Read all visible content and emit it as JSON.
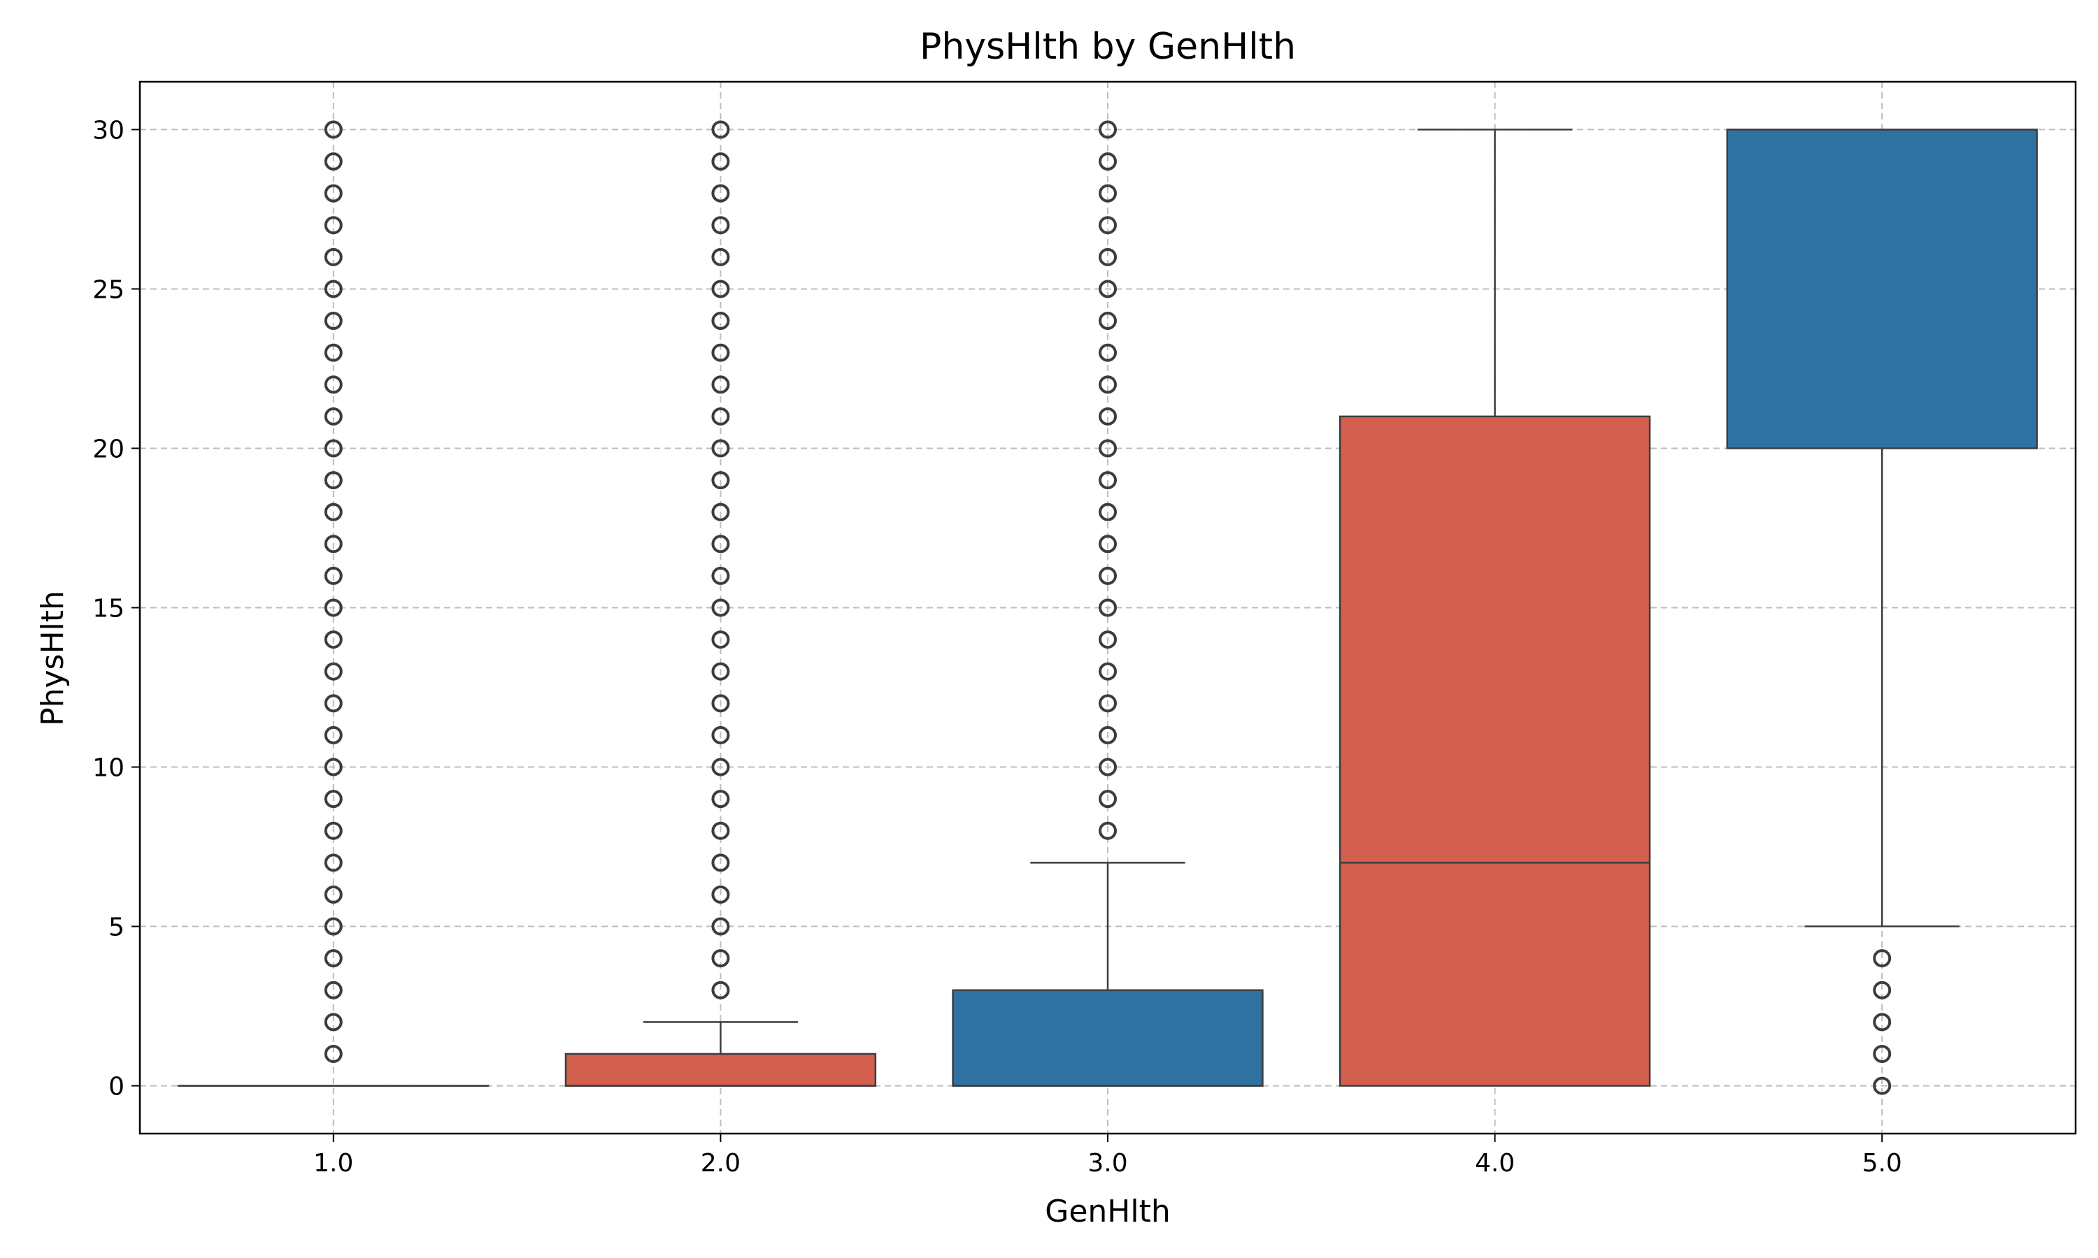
{
  "chart_data": {
    "type": "box",
    "title": "PhysHlth by GenHlth",
    "xlabel": "GenHlth",
    "ylabel": "PhysHlth",
    "categories": [
      "1.0",
      "2.0",
      "3.0",
      "4.0",
      "5.0"
    ],
    "ylim": [
      -1.5,
      31.5
    ],
    "yticks": [
      0,
      5,
      10,
      15,
      20,
      25,
      30
    ],
    "ytick_labels": [
      "0",
      "5",
      "10",
      "15",
      "20",
      "25",
      "30"
    ],
    "grid": true,
    "legend": "none",
    "colors": [
      "#d35f4f",
      "#d35f4f",
      "#2f72a1",
      "#d35f4f",
      "#2f72a1"
    ],
    "boxes": [
      {
        "category": "1.0",
        "whislo": 0,
        "q1": 0,
        "median": 0,
        "q3": 0,
        "whishi": 0,
        "fliers": [
          1,
          2,
          3,
          4,
          5,
          6,
          7,
          8,
          9,
          10,
          11,
          12,
          13,
          14,
          15,
          16,
          17,
          18,
          19,
          20,
          21,
          22,
          23,
          24,
          25,
          26,
          27,
          28,
          29,
          30
        ]
      },
      {
        "category": "2.0",
        "whislo": 0,
        "q1": 0,
        "median": 0,
        "q3": 1,
        "whishi": 2,
        "fliers": [
          3,
          4,
          5,
          6,
          7,
          8,
          9,
          10,
          11,
          12,
          13,
          14,
          15,
          16,
          17,
          18,
          19,
          20,
          21,
          22,
          23,
          24,
          25,
          26,
          27,
          28,
          29,
          30
        ]
      },
      {
        "category": "3.0",
        "whislo": 0,
        "q1": 0,
        "median": 0,
        "q3": 3,
        "whishi": 7,
        "fliers": [
          8,
          9,
          10,
          11,
          12,
          13,
          14,
          15,
          16,
          17,
          18,
          19,
          20,
          21,
          22,
          23,
          24,
          25,
          26,
          27,
          28,
          29,
          30
        ]
      },
      {
        "category": "4.0",
        "whislo": 0,
        "q1": 0,
        "median": 7,
        "q3": 21,
        "whishi": 30,
        "fliers": []
      },
      {
        "category": "5.0",
        "whislo": 5,
        "q1": 20,
        "median": 30,
        "q3": 30,
        "whishi": 30,
        "fliers": [
          0,
          1,
          2,
          3,
          4
        ]
      }
    ]
  }
}
